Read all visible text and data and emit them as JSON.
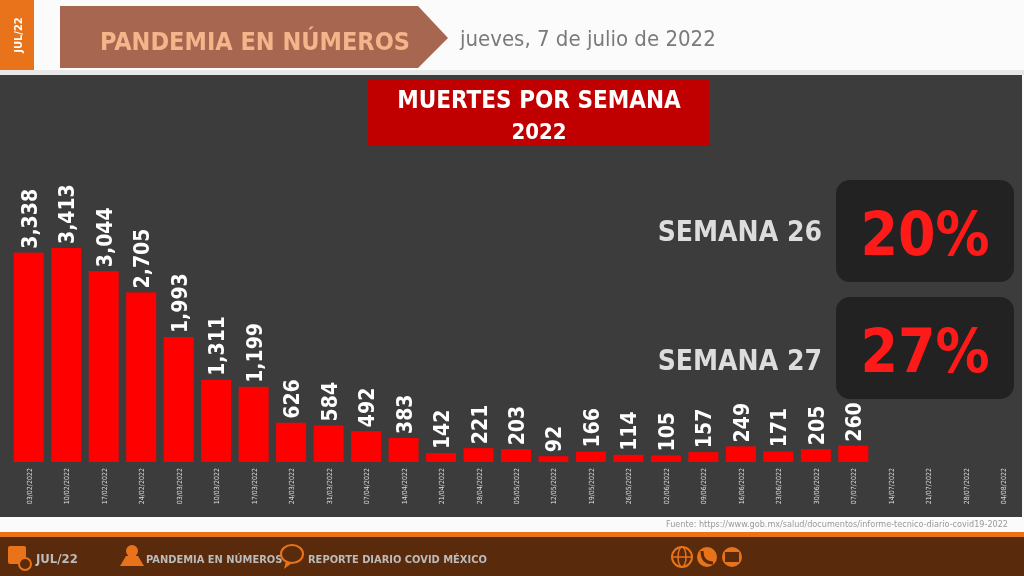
{
  "chart_data": {
    "type": "bar",
    "title": "MUERTES POR SEMANA",
    "subtitle": "2022",
    "categories": [
      "03/02/2022",
      "10/02/2022",
      "17/02/2022",
      "24/02/2022",
      "03/03/2022",
      "10/03/2022",
      "17/03/2022",
      "24/03/2022",
      "31/03/2022",
      "07/04/2022",
      "14/04/2022",
      "21/04/2022",
      "28/04/2022",
      "05/05/2022",
      "12/05/2022",
      "19/05/2022",
      "26/05/2022",
      "02/06/2022",
      "09/06/2022",
      "16/06/2022",
      "23/06/2022",
      "30/06/2022",
      "07/07/2022",
      "14/07/2022",
      "21/07/2022",
      "28/07/2022",
      "04/08/2022"
    ],
    "values": [
      3338,
      3413,
      3044,
      2705,
      1993,
      1311,
      1199,
      626,
      584,
      492,
      383,
      142,
      221,
      203,
      92,
      166,
      114,
      105,
      157,
      249,
      171,
      205,
      260,
      null,
      null,
      null,
      null
    ],
    "value_labels": [
      "3,338",
      "3,413",
      "3,044",
      "2,705",
      "1,993",
      "1,311",
      "1,199",
      "626",
      "584",
      "492",
      "383",
      "142",
      "221",
      "203",
      "92",
      "166",
      "114",
      "105",
      "157",
      "249",
      "171",
      "205",
      "260",
      null,
      null,
      null,
      null
    ],
    "color": "#ff0000",
    "annotations": [
      "JUL/22",
      "PANDEMIA EN NÚMEROS",
      "jueves, 7 de julio de 2022",
      "SEMANA 26",
      "20%",
      "SEMANA 27",
      "27%",
      "Fuente: https://www.gob.mx/salud/documentos/informe-tecnico-diario-covid19-2022",
      "JUL/22",
      "PANDEMIA EN NÚMEROS",
      "REPORTE DIARIO COVID MÉXICO"
    ]
  }
}
